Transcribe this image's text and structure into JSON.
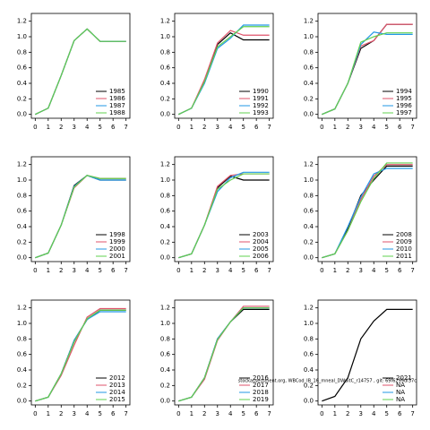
{
  "chart_data": [
    {
      "type": "line",
      "x": [
        0,
        1,
        2,
        3,
        4,
        5,
        6,
        7
      ],
      "xlim": [
        -0.3,
        7.3
      ],
      "xticks": [
        0,
        1,
        2,
        3,
        4,
        5,
        6,
        7
      ],
      "ylim": [
        -0.05,
        1.3
      ],
      "yticks": [
        {
          "value": 0,
          "label": "0.0"
        },
        {
          "value": 0.2,
          "label": "0.2"
        },
        {
          "value": 0.4,
          "label": "0.4"
        },
        {
          "value": 0.6,
          "label": "0.6"
        },
        {
          "value": 0.8,
          "label": "0.8"
        },
        {
          "value": 1.0,
          "label": "1.0"
        },
        {
          "value": 1.2,
          "label": "1.2"
        }
      ],
      "legend": "lower right",
      "series": [
        {
          "name": "1985",
          "color": "#000000",
          "values": [
            0,
            0.08,
            0.5,
            0.95,
            1.1,
            0.94,
            0.94,
            0.94
          ]
        },
        {
          "name": "1986",
          "color": "#df536b",
          "values": [
            0,
            0.08,
            0.5,
            0.95,
            1.1,
            0.94,
            0.94,
            0.94
          ]
        },
        {
          "name": "1987",
          "color": "#2297e6",
          "values": [
            0,
            0.08,
            0.5,
            0.95,
            1.1,
            0.94,
            0.94,
            0.94
          ]
        },
        {
          "name": "1988",
          "color": "#61d04f",
          "values": [
            0,
            0.08,
            0.5,
            0.95,
            1.1,
            0.94,
            0.94,
            0.94
          ]
        }
      ]
    },
    {
      "type": "line",
      "x": [
        0,
        1,
        2,
        3,
        4,
        5,
        6,
        7
      ],
      "xlim": [
        -0.3,
        7.3
      ],
      "xticks": [
        0,
        1,
        2,
        3,
        4,
        5,
        6,
        7
      ],
      "ylim": [
        -0.05,
        1.3
      ],
      "yticks": [
        {
          "value": 0,
          "label": "0.0"
        },
        {
          "value": 0.2,
          "label": "0.2"
        },
        {
          "value": 0.4,
          "label": "0.4"
        },
        {
          "value": 0.6,
          "label": "0.6"
        },
        {
          "value": 0.8,
          "label": "0.8"
        },
        {
          "value": 1.0,
          "label": "1.0"
        },
        {
          "value": 1.2,
          "label": "1.2"
        }
      ],
      "legend": "lower right",
      "series": [
        {
          "name": "1990",
          "color": "#000000",
          "values": [
            0,
            0.08,
            0.42,
            0.9,
            1.05,
            0.96,
            0.96,
            0.96
          ]
        },
        {
          "name": "1991",
          "color": "#df536b",
          "values": [
            0,
            0.08,
            0.45,
            0.92,
            1.08,
            1.02,
            1.02,
            1.02
          ]
        },
        {
          "name": "1992",
          "color": "#2297e6",
          "values": [
            0,
            0.08,
            0.4,
            0.85,
            0.98,
            1.15,
            1.15,
            1.15
          ]
        },
        {
          "name": "1993",
          "color": "#61d04f",
          "values": [
            0,
            0.08,
            0.42,
            0.87,
            1.0,
            1.13,
            1.13,
            1.13
          ]
        }
      ]
    },
    {
      "type": "line",
      "x": [
        0,
        1,
        2,
        3,
        4,
        5,
        6,
        7
      ],
      "xlim": [
        -0.3,
        7.3
      ],
      "xticks": [
        0,
        1,
        2,
        3,
        4,
        5,
        6,
        7
      ],
      "ylim": [
        -0.05,
        1.3
      ],
      "yticks": [
        {
          "value": 0,
          "label": "0.0"
        },
        {
          "value": 0.2,
          "label": "0.2"
        },
        {
          "value": 0.4,
          "label": "0.4"
        },
        {
          "value": 0.6,
          "label": "0.6"
        },
        {
          "value": 0.8,
          "label": "0.8"
        },
        {
          "value": 1.0,
          "label": "1.0"
        },
        {
          "value": 1.2,
          "label": "1.2"
        }
      ],
      "legend": "lower right",
      "series": [
        {
          "name": "1994",
          "color": "#000000",
          "values": [
            0,
            0.07,
            0.4,
            0.85,
            0.95,
            1.16,
            1.16,
            1.16
          ]
        },
        {
          "name": "1995",
          "color": "#df536b",
          "values": [
            0,
            0.07,
            0.4,
            0.88,
            0.95,
            1.16,
            1.16,
            1.16
          ]
        },
        {
          "name": "1996",
          "color": "#2297e6",
          "values": [
            0,
            0.07,
            0.4,
            0.9,
            1.06,
            1.03,
            1.03,
            1.03
          ]
        },
        {
          "name": "1997",
          "color": "#61d04f",
          "values": [
            0,
            0.07,
            0.4,
            0.93,
            1.0,
            1.05,
            1.05,
            1.05
          ]
        }
      ]
    },
    {
      "type": "line",
      "x": [
        0,
        1,
        2,
        3,
        4,
        5,
        6,
        7
      ],
      "xlim": [
        -0.3,
        7.3
      ],
      "xticks": [
        0,
        1,
        2,
        3,
        4,
        5,
        6,
        7
      ],
      "ylim": [
        -0.05,
        1.3
      ],
      "yticks": [
        {
          "value": 0,
          "label": "0.0"
        },
        {
          "value": 0.2,
          "label": "0.2"
        },
        {
          "value": 0.4,
          "label": "0.4"
        },
        {
          "value": 0.6,
          "label": "0.6"
        },
        {
          "value": 0.8,
          "label": "0.8"
        },
        {
          "value": 1.0,
          "label": "1.0"
        },
        {
          "value": 1.2,
          "label": "1.2"
        }
      ],
      "legend": "lower right",
      "series": [
        {
          "name": "1998",
          "color": "#000000",
          "values": [
            0,
            0.06,
            0.42,
            0.93,
            1.06,
            1.0,
            1.0,
            1.0
          ]
        },
        {
          "name": "1999",
          "color": "#df536b",
          "values": [
            0,
            0.06,
            0.42,
            0.9,
            1.06,
            1.02,
            1.02,
            1.02
          ]
        },
        {
          "name": "2000",
          "color": "#2297e6",
          "values": [
            0,
            0.06,
            0.42,
            0.92,
            1.06,
            1.0,
            1.0,
            1.0
          ]
        },
        {
          "name": "2001",
          "color": "#61d04f",
          "values": [
            0,
            0.06,
            0.42,
            0.91,
            1.06,
            1.02,
            1.02,
            1.02
          ]
        }
      ]
    },
    {
      "type": "line",
      "x": [
        0,
        1,
        2,
        3,
        4,
        5,
        6,
        7
      ],
      "xlim": [
        -0.3,
        7.3
      ],
      "xticks": [
        0,
        1,
        2,
        3,
        4,
        5,
        6,
        7
      ],
      "ylim": [
        -0.05,
        1.3
      ],
      "yticks": [
        {
          "value": 0,
          "label": "0.0"
        },
        {
          "value": 0.2,
          "label": "0.2"
        },
        {
          "value": 0.4,
          "label": "0.4"
        },
        {
          "value": 0.6,
          "label": "0.6"
        },
        {
          "value": 0.8,
          "label": "0.8"
        },
        {
          "value": 1.0,
          "label": "1.0"
        },
        {
          "value": 1.2,
          "label": "1.2"
        }
      ],
      "legend": "lower right",
      "series": [
        {
          "name": "2003",
          "color": "#000000",
          "values": [
            0,
            0.05,
            0.42,
            0.9,
            1.05,
            1.0,
            1.0,
            1.0
          ]
        },
        {
          "name": "2004",
          "color": "#df536b",
          "values": [
            0,
            0.05,
            0.42,
            0.92,
            1.06,
            1.08,
            1.08,
            1.08
          ]
        },
        {
          "name": "2005",
          "color": "#2297e6",
          "values": [
            0,
            0.05,
            0.42,
            0.85,
            1.03,
            1.1,
            1.1,
            1.1
          ]
        },
        {
          "name": "2006",
          "color": "#61d04f",
          "values": [
            0,
            0.05,
            0.42,
            0.88,
            1.0,
            1.08,
            1.08,
            1.08
          ]
        }
      ]
    },
    {
      "type": "line",
      "x": [
        0,
        1,
        2,
        3,
        4,
        5,
        6,
        7
      ],
      "xlim": [
        -0.3,
        7.3
      ],
      "xticks": [
        0,
        1,
        2,
        3,
        4,
        5,
        6,
        7
      ],
      "ylim": [
        -0.05,
        1.3
      ],
      "yticks": [
        {
          "value": 0,
          "label": "0.0"
        },
        {
          "value": 0.2,
          "label": "0.2"
        },
        {
          "value": 0.4,
          "label": "0.4"
        },
        {
          "value": 0.6,
          "label": "0.6"
        },
        {
          "value": 0.8,
          "label": "0.8"
        },
        {
          "value": 1.0,
          "label": "1.0"
        },
        {
          "value": 1.2,
          "label": "1.2"
        }
      ],
      "legend": "lower right",
      "series": [
        {
          "name": "2008",
          "color": "#000000",
          "values": [
            0,
            0.05,
            0.38,
            0.8,
            1.0,
            1.18,
            1.18,
            1.18
          ]
        },
        {
          "name": "2009",
          "color": "#df536b",
          "values": [
            0,
            0.05,
            0.35,
            0.75,
            1.05,
            1.2,
            1.2,
            1.2
          ]
        },
        {
          "name": "2010",
          "color": "#2297e6",
          "values": [
            0,
            0.05,
            0.4,
            0.78,
            1.08,
            1.15,
            1.15,
            1.15
          ]
        },
        {
          "name": "2011",
          "color": "#61d04f",
          "values": [
            0,
            0.05,
            0.35,
            0.72,
            1.02,
            1.22,
            1.22,
            1.22
          ]
        }
      ]
    },
    {
      "type": "line",
      "x": [
        0,
        1,
        2,
        3,
        4,
        5,
        6,
        7
      ],
      "xlim": [
        -0.3,
        7.3
      ],
      "xticks": [
        0,
        1,
        2,
        3,
        4,
        5,
        6,
        7
      ],
      "ylim": [
        -0.05,
        1.3
      ],
      "yticks": [
        {
          "value": 0,
          "label": "0.0"
        },
        {
          "value": 0.2,
          "label": "0.2"
        },
        {
          "value": 0.4,
          "label": "0.4"
        },
        {
          "value": 0.6,
          "label": "0.6"
        },
        {
          "value": 0.8,
          "label": "0.8"
        },
        {
          "value": 1.0,
          "label": "1.0"
        },
        {
          "value": 1.2,
          "label": "1.2"
        }
      ],
      "legend": "lower right",
      "series": [
        {
          "name": "2012",
          "color": "#000000",
          "values": [
            0,
            0.05,
            0.35,
            0.78,
            1.05,
            1.17,
            1.17,
            1.17
          ]
        },
        {
          "name": "2013",
          "color": "#df536b",
          "values": [
            0,
            0.05,
            0.33,
            0.72,
            1.08,
            1.19,
            1.19,
            1.19
          ]
        },
        {
          "name": "2014",
          "color": "#2297e6",
          "values": [
            0,
            0.05,
            0.35,
            0.78,
            1.05,
            1.15,
            1.15,
            1.15
          ]
        },
        {
          "name": "2015",
          "color": "#61d04f",
          "values": [
            0,
            0.05,
            0.35,
            0.76,
            1.06,
            1.17,
            1.17,
            1.17
          ]
        }
      ]
    },
    {
      "type": "line",
      "x": [
        0,
        1,
        2,
        3,
        4,
        5,
        6,
        7
      ],
      "xlim": [
        -0.3,
        7.3
      ],
      "xticks": [
        0,
        1,
        2,
        3,
        4,
        5,
        6,
        7
      ],
      "ylim": [
        -0.05,
        1.3
      ],
      "yticks": [
        {
          "value": 0,
          "label": "0.0"
        },
        {
          "value": 0.2,
          "label": "0.2"
        },
        {
          "value": 0.4,
          "label": "0.4"
        },
        {
          "value": 0.6,
          "label": "0.6"
        },
        {
          "value": 0.8,
          "label": "0.8"
        },
        {
          "value": 1.0,
          "label": "1.0"
        },
        {
          "value": 1.2,
          "label": "1.2"
        }
      ],
      "legend": "lower right",
      "series": [
        {
          "name": "2016",
          "color": "#000000",
          "values": [
            0,
            0.05,
            0.3,
            0.8,
            1.02,
            1.18,
            1.18,
            1.18
          ]
        },
        {
          "name": "2017",
          "color": "#df536b",
          "values": [
            0,
            0.05,
            0.28,
            0.78,
            1.02,
            1.22,
            1.22,
            1.22
          ]
        },
        {
          "name": "2018",
          "color": "#2297e6",
          "values": [
            0,
            0.05,
            0.3,
            0.8,
            1.02,
            1.2,
            1.2,
            1.2
          ]
        },
        {
          "name": "2019",
          "color": "#61d04f",
          "values": [
            0,
            0.05,
            0.3,
            0.79,
            1.02,
            1.2,
            1.2,
            1.2
          ]
        }
      ],
      "annotation": "stockassessment.org, WBCod_IB_16_mneal_DWuitC_r14757 , git: 69f6299df37c"
    },
    {
      "type": "line",
      "x": [
        0,
        1,
        2,
        3,
        4,
        5,
        6,
        7
      ],
      "xlim": [
        -0.3,
        7.3
      ],
      "xticks": [
        0,
        1,
        2,
        3,
        4,
        5,
        6,
        7
      ],
      "ylim": [
        -0.05,
        1.3
      ],
      "yticks": [
        {
          "value": 0,
          "label": "0.0"
        },
        {
          "value": 0.2,
          "label": "0.2"
        },
        {
          "value": 0.4,
          "label": "0.4"
        },
        {
          "value": 0.6,
          "label": "0.6"
        },
        {
          "value": 0.8,
          "label": "0.8"
        },
        {
          "value": 1.0,
          "label": "1.0"
        },
        {
          "value": 1.2,
          "label": "1.2"
        }
      ],
      "legend": "lower right",
      "series": [
        {
          "name": "2021",
          "color": "#000000",
          "values": [
            0,
            0.06,
            0.3,
            0.8,
            1.03,
            1.18,
            1.18,
            1.18
          ]
        },
        {
          "name": "NA",
          "color": "#df536b",
          "values": [
            null,
            null,
            null,
            null,
            null,
            null,
            null,
            null
          ]
        },
        {
          "name": "NA",
          "color": "#2297e6",
          "values": [
            null,
            null,
            null,
            null,
            null,
            null,
            null,
            null
          ]
        },
        {
          "name": "NA",
          "color": "#61d04f",
          "values": [
            null,
            null,
            null,
            null,
            null,
            null,
            null,
            null
          ]
        }
      ]
    }
  ]
}
